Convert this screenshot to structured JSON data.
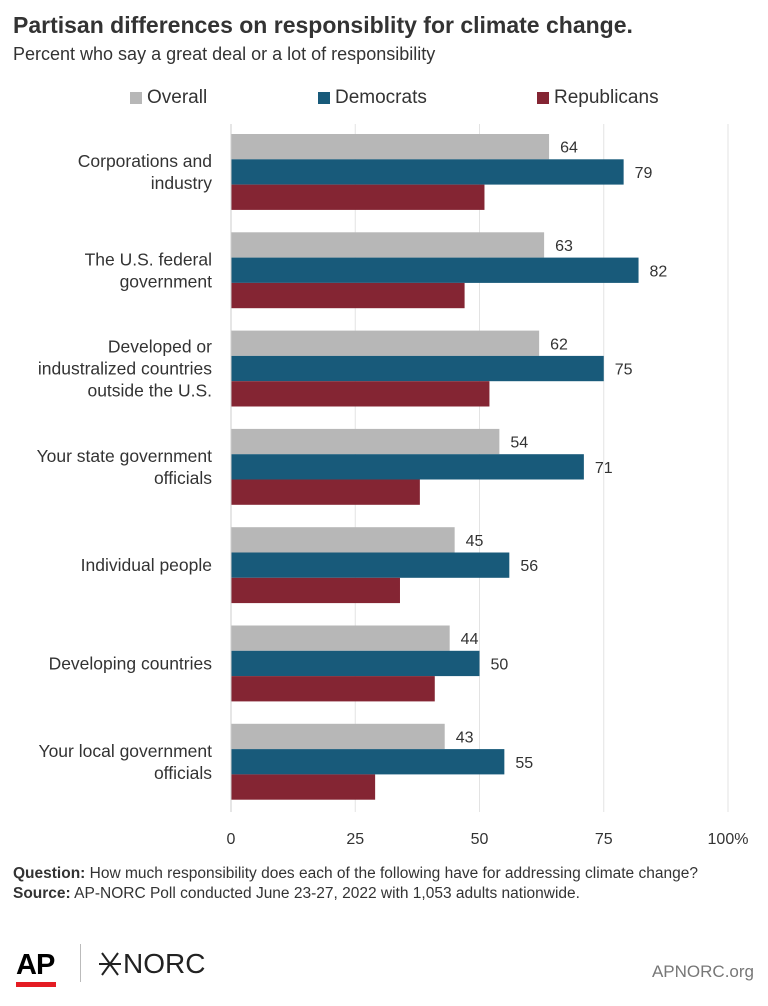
{
  "title": "Partisan differences on responsiblity for climate change.",
  "subtitle": "Percent who say a great deal or a lot of responsibility",
  "colors": {
    "overall": "#b7b7b7",
    "democrats": "#185a7a",
    "republicans": "#842533",
    "grid": "#e3e3e3",
    "text": "#333333"
  },
  "chart_data": {
    "type": "bar",
    "orientation": "horizontal",
    "categories": [
      [
        "Corporations and",
        "industry"
      ],
      [
        "The U.S. federal",
        "government"
      ],
      [
        "Developed or",
        "industralized countries",
        "outside the U.S."
      ],
      [
        "Your state government",
        "officials"
      ],
      [
        "Individual people"
      ],
      [
        "Developing countries"
      ],
      [
        "Your local government",
        "officials"
      ]
    ],
    "series": [
      {
        "name": "Overall",
        "color": "#b7b7b7",
        "values": [
          64,
          63,
          62,
          54,
          45,
          44,
          43
        ],
        "labeled": true
      },
      {
        "name": "Democrats",
        "color": "#185a7a",
        "values": [
          79,
          82,
          75,
          71,
          56,
          50,
          55
        ],
        "labeled": true
      },
      {
        "name": "Republicans",
        "color": "#842533",
        "values": [
          51,
          47,
          52,
          38,
          34,
          41,
          29
        ],
        "labeled": false
      }
    ],
    "xlim": [
      0,
      100
    ],
    "xticks": [
      "0",
      "25",
      "50",
      "75",
      "100%"
    ],
    "xtick_values": [
      0,
      25,
      50,
      75,
      100
    ],
    "grid": true,
    "legend": "top"
  },
  "notes": {
    "question_label": "Question:",
    "question_text": " How much responsibility does each of the following have for addressing climate change?",
    "source_label": "Source:",
    "source_text": " AP-NORC Poll conducted June 23-27, 2022 with 1,053 adults nationwide."
  },
  "footer": {
    "ap_logo": "AP",
    "norc_logo": "NORC",
    "website": "APNORC.org"
  }
}
